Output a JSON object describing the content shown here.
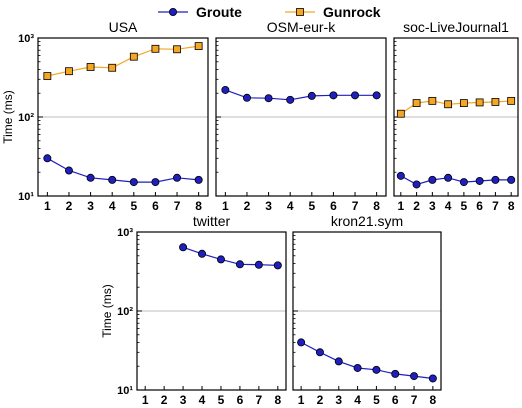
{
  "legend": {
    "placement": "top-center",
    "entries": [
      {
        "label": "Groute",
        "color": "#1f1fbf",
        "marker": "circle"
      },
      {
        "label": "Gunrock",
        "color": "#f5a623",
        "marker": "square"
      }
    ]
  },
  "colors": {
    "groute_fill": "#1f1fbf",
    "gunrock_fill": "#f5a623",
    "line": "#000000",
    "grid": "#bdbdbd"
  },
  "chart_data": [
    {
      "type": "line",
      "title": "USA",
      "ylabel": "Time (ms)",
      "yscale": "log",
      "ylim": [
        10,
        1000
      ],
      "yticks": [
        "10¹",
        "10²",
        "10³"
      ],
      "x": [
        1,
        2,
        3,
        4,
        5,
        6,
        7,
        8
      ],
      "grid": "horizontal at 10^2",
      "series": [
        {
          "name": "Groute",
          "values": [
            30,
            21,
            17,
            16,
            15,
            15,
            17,
            16
          ]
        },
        {
          "name": "Gunrock",
          "values": [
            330,
            380,
            430,
            420,
            580,
            730,
            720,
            790
          ]
        }
      ]
    },
    {
      "type": "line",
      "title": "OSM-eur-k",
      "yscale": "log",
      "ylim": [
        10,
        1000
      ],
      "x": [
        1,
        2,
        3,
        4,
        5,
        6,
        7,
        8
      ],
      "grid": "horizontal at 10^2",
      "series": [
        {
          "name": "Groute",
          "values": [
            220,
            175,
            173,
            165,
            185,
            188,
            188,
            188
          ]
        }
      ]
    },
    {
      "type": "line",
      "title": "soc-LiveJournal1",
      "yscale": "log",
      "ylim": [
        10,
        1000
      ],
      "x": [
        1,
        2,
        3,
        4,
        5,
        6,
        7,
        8
      ],
      "grid": "horizontal at 10^2",
      "series": [
        {
          "name": "Groute",
          "values": [
            18,
            14,
            16,
            17,
            15,
            15.5,
            16,
            16
          ]
        },
        {
          "name": "Gunrock",
          "values": [
            110,
            150,
            160,
            145,
            150,
            153,
            155,
            160
          ]
        }
      ]
    },
    {
      "type": "line",
      "title": "twitter",
      "ylabel": "Time (ms)",
      "yscale": "log",
      "ylim": [
        10,
        1000
      ],
      "yticks": [
        "10¹",
        "10²",
        "10³"
      ],
      "x": [
        1,
        2,
        3,
        4,
        5,
        6,
        7,
        8
      ],
      "grid": "horizontal at 10^2",
      "series": [
        {
          "name": "Groute",
          "values": [
            null,
            null,
            640,
            530,
            450,
            390,
            385,
            378
          ]
        }
      ]
    },
    {
      "type": "line",
      "title": "kron21.sym",
      "yscale": "log",
      "ylim": [
        10,
        1000
      ],
      "x": [
        1,
        2,
        3,
        4,
        5,
        6,
        7,
        8
      ],
      "grid": "horizontal at 10^2",
      "series": [
        {
          "name": "Groute",
          "values": [
            40,
            30,
            23,
            19,
            18,
            16,
            15,
            14
          ]
        }
      ]
    }
  ]
}
